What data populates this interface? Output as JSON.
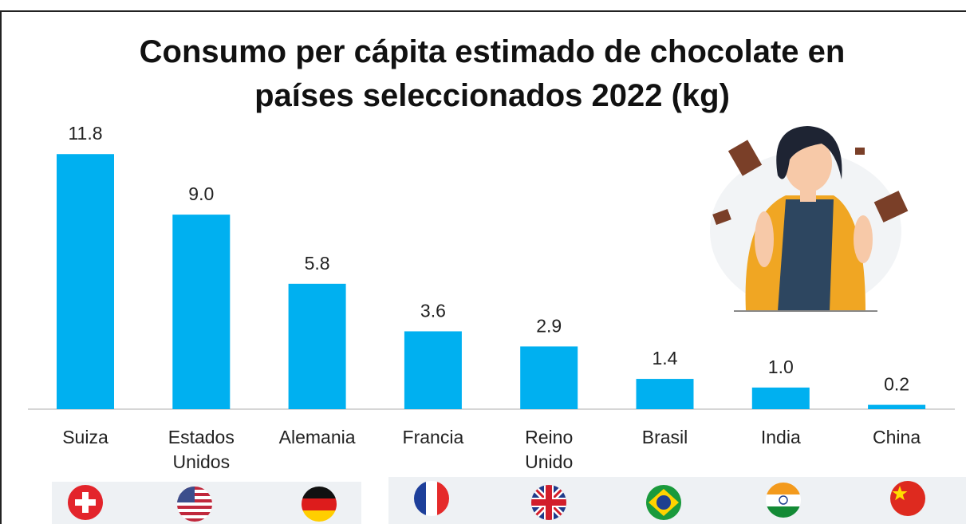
{
  "chart_data": {
    "type": "bar",
    "title": "Consumo per cápita estimado de chocolate en países seleccionados 2022 (kg)",
    "categories": [
      "Suiza",
      "Estados Unidos",
      "Alemania",
      "Francia",
      "Reino Unido",
      "Brasil",
      "India",
      "China"
    ],
    "values": [
      11.8,
      9.0,
      5.8,
      3.6,
      2.9,
      1.4,
      1.0,
      0.2
    ],
    "value_labels": [
      "11.8",
      "9.0",
      "5.8",
      "3.6",
      "2.9",
      "1.4",
      "1.0",
      "0.2"
    ],
    "color": "#00b0f0"
  }
}
